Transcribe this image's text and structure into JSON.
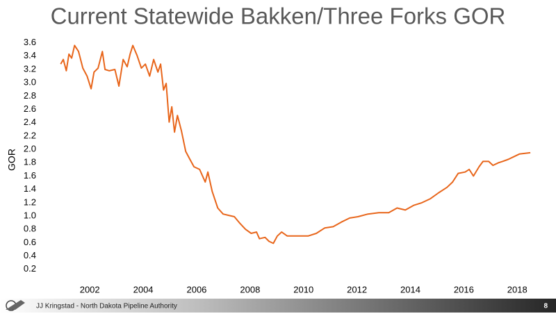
{
  "chart_data": {
    "type": "line",
    "title": "Current Statewide Bakken/Three Forks GOR",
    "y_label": "GOR",
    "x": [
      2000.91,
      2001.01,
      2001.12,
      2001.22,
      2001.32,
      2001.43,
      2001.58,
      2001.74,
      2001.9,
      2002.05,
      2002.16,
      2002.31,
      2002.47,
      2002.57,
      2002.73,
      2002.94,
      2003.09,
      2003.25,
      2003.4,
      2003.51,
      2003.61,
      2003.77,
      2003.93,
      2004.08,
      2004.24,
      2004.39,
      2004.55,
      2004.65,
      2004.76,
      2004.86,
      2004.97,
      2005.07,
      2005.17,
      2005.28,
      2005.43,
      2005.59,
      2005.75,
      2005.9,
      2006.11,
      2006.32,
      2006.42,
      2006.58,
      2006.79,
      2006.99,
      2007.2,
      2007.41,
      2007.62,
      2007.83,
      2008.04,
      2008.24,
      2008.35,
      2008.56,
      2008.71,
      2008.87,
      2009.02,
      2009.18,
      2009.39,
      2009.65,
      2009.91,
      2010.17,
      2010.48,
      2010.79,
      2011.11,
      2011.42,
      2011.73,
      2012.04,
      2012.41,
      2012.82,
      2013.19,
      2013.5,
      2013.81,
      2014.12,
      2014.43,
      2014.75,
      2015.06,
      2015.37,
      2015.58,
      2015.79,
      2016.05,
      2016.2,
      2016.36,
      2016.57,
      2016.72,
      2016.93,
      2017.09,
      2017.3,
      2017.45,
      2017.66,
      2017.87,
      2018.08,
      2018.49
    ],
    "values": [
      3.28,
      3.35,
      3.18,
      3.43,
      3.37,
      3.56,
      3.47,
      3.22,
      3.1,
      2.91,
      3.16,
      3.22,
      3.47,
      3.2,
      3.18,
      3.2,
      2.95,
      3.35,
      3.24,
      3.43,
      3.56,
      3.41,
      3.22,
      3.28,
      3.1,
      3.35,
      3.16,
      3.28,
      2.89,
      2.99,
      2.41,
      2.64,
      2.26,
      2.51,
      2.28,
      1.97,
      1.85,
      1.74,
      1.7,
      1.51,
      1.66,
      1.37,
      1.12,
      1.03,
      1.01,
      0.99,
      0.89,
      0.8,
      0.74,
      0.76,
      0.66,
      0.68,
      0.62,
      0.59,
      0.7,
      0.76,
      0.7,
      0.7,
      0.7,
      0.7,
      0.74,
      0.82,
      0.84,
      0.91,
      0.97,
      0.99,
      1.03,
      1.05,
      1.05,
      1.12,
      1.09,
      1.16,
      1.2,
      1.26,
      1.35,
      1.43,
      1.51,
      1.64,
      1.66,
      1.7,
      1.6,
      1.74,
      1.82,
      1.82,
      1.76,
      1.8,
      1.82,
      1.85,
      1.89,
      1.93,
      1.95
    ],
    "color": "#e8651a",
    "xlim": [
      2000.2,
      2018.8
    ],
    "xticks": [
      2002,
      2004,
      2006,
      2008,
      2010,
      2012,
      2014,
      2016,
      2018
    ],
    "ylim": [
      0,
      3.7
    ],
    "yticks": [
      0.2,
      0.4,
      0.6,
      0.8,
      {
        "value": 1,
        "label": "1.0"
      },
      1.2,
      1.4,
      1.6,
      1.8,
      {
        "value": 2,
        "label": "2.0"
      },
      2.2,
      2.4,
      2.6,
      2.8,
      {
        "value": 3,
        "label": "3.0"
      },
      3.2,
      3.4,
      3.6
    ],
    "grid": false
  },
  "footer": {
    "author": "JJ Kringstad - North Dakota Pipeline Authority",
    "page": "8"
  }
}
